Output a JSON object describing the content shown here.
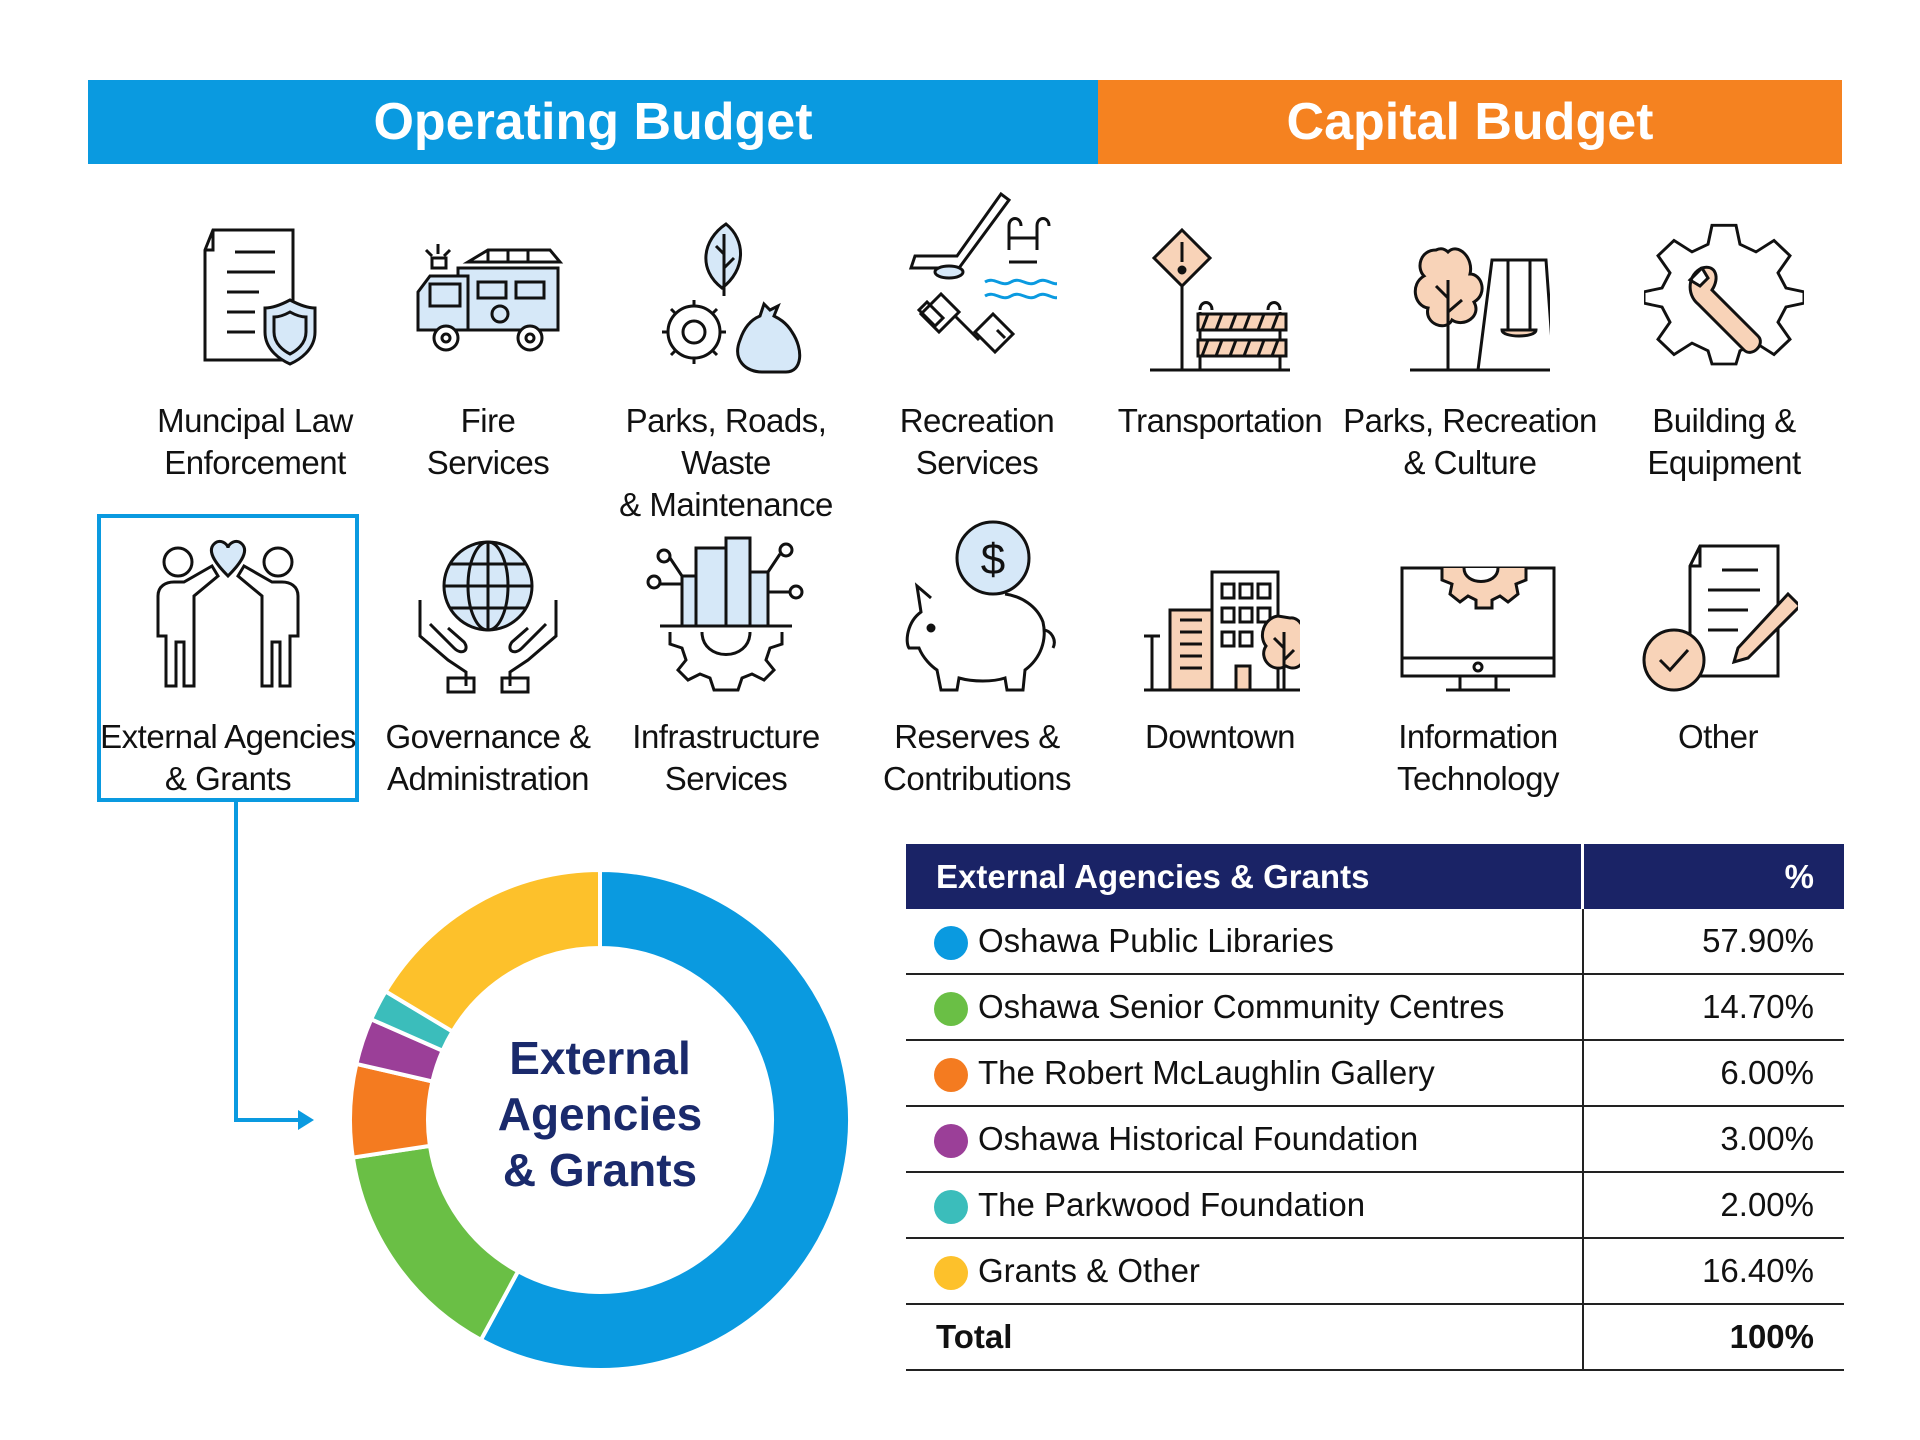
{
  "header": {
    "operating_title": "Operating Budget",
    "capital_title": "Capital Budget",
    "operating_color": "#0a9ae0",
    "capital_color": "#f58220"
  },
  "categories": {
    "row1": [
      {
        "label_1": "Muncipal Law",
        "label_2": "Enforcement",
        "icon": "document-shield-icon"
      },
      {
        "label_1": "Fire",
        "label_2": "Services",
        "icon": "fire-truck-icon"
      },
      {
        "label_1": "Parks, Roads, Waste",
        "label_2": "& Maintenance",
        "icon": "leaf-gear-bag-icon"
      },
      {
        "label_1": "Recreation",
        "label_2": "Services",
        "icon": "hockey-pool-dumbbell-icon"
      },
      {
        "label_1": "Transportation",
        "label_2": "",
        "icon": "road-sign-barricade-icon"
      },
      {
        "label_1": "Parks, Recreation",
        "label_2": "& Culture",
        "icon": "tree-swing-icon"
      },
      {
        "label_1": "Building &",
        "label_2": "Equipment",
        "icon": "gear-wrench-icon"
      }
    ],
    "row2": [
      {
        "label_1": "External Agencies",
        "label_2": "& Grants",
        "icon": "people-heart-icon"
      },
      {
        "label_1": "Governance &",
        "label_2": "Administration",
        "icon": "hands-globe-icon"
      },
      {
        "label_1": "Infrastructure",
        "label_2": "Services",
        "icon": "city-gear-icon"
      },
      {
        "label_1": "Reserves &",
        "label_2": "Contributions",
        "icon": "piggy-bank-icon"
      },
      {
        "label_1": "Downtown",
        "label_2": "",
        "icon": "buildings-icon"
      },
      {
        "label_1": "Information",
        "label_2": "Technology",
        "icon": "monitor-gear-icon"
      },
      {
        "label_1": "Other",
        "label_2": "",
        "icon": "document-pencil-check-icon"
      }
    ]
  },
  "donut": {
    "center_line1": "External",
    "center_line2": "Agencies",
    "center_line3": "& Grants"
  },
  "chart_data": {
    "type": "pie",
    "title": "External Agencies & Grants",
    "categories": [
      "Oshawa Public Libraries",
      "Oshawa Senior Community Centres",
      "The Robert McLaughlin Gallery",
      "Oshawa Historical Foundation",
      "The Parkwood Foundation",
      "Grants & Other"
    ],
    "values": [
      57.9,
      14.7,
      6.0,
      3.0,
      2.0,
      16.4
    ],
    "colors": [
      "#0a9ae0",
      "#6abf45",
      "#f47b20",
      "#9b3f98",
      "#3bbdbb",
      "#fdc12b"
    ]
  },
  "table": {
    "header_name": "External Agencies & Grants",
    "header_pct": "%",
    "rows": [
      {
        "name": "Oshawa Public Libraries",
        "pct": "57.90%"
      },
      {
        "name": "Oshawa Senior Community Centres",
        "pct": "14.70%"
      },
      {
        "name": "The Robert McLaughlin Gallery",
        "pct": "6.00%"
      },
      {
        "name": "Oshawa Historical Foundation",
        "pct": "3.00%"
      },
      {
        "name": "The Parkwood Foundation",
        "pct": "2.00%"
      },
      {
        "name": "Grants & Other",
        "pct": "16.40%"
      }
    ],
    "total_name": "Total",
    "total_pct": "100%"
  }
}
